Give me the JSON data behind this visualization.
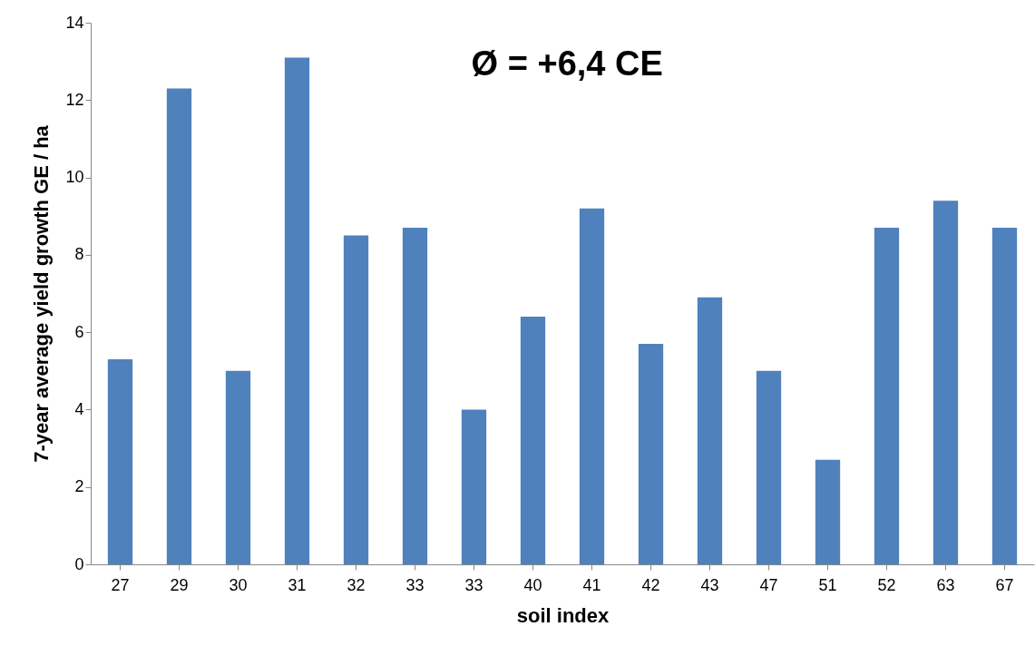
{
  "chart_data": {
    "type": "bar",
    "xlabel": "soil index",
    "ylabel": "7-year average yield growth GE / ha",
    "categories": [
      "27",
      "29",
      "30",
      "31",
      "32",
      "33",
      "33",
      "40",
      "41",
      "42",
      "43",
      "47",
      "51",
      "52",
      "63",
      "67"
    ],
    "values": [
      5.3,
      12.3,
      5.0,
      13.1,
      8.5,
      8.7,
      4.0,
      6.4,
      9.2,
      5.7,
      6.9,
      5.0,
      2.7,
      8.7,
      9.4,
      8.7
    ],
    "color": "#4f81bd",
    "ylim": [
      0,
      14
    ],
    "yticks": [
      0,
      2,
      4,
      6,
      8,
      10,
      12,
      14
    ],
    "grid": false,
    "annotations": [
      "Ø = +6,4 CE"
    ]
  }
}
